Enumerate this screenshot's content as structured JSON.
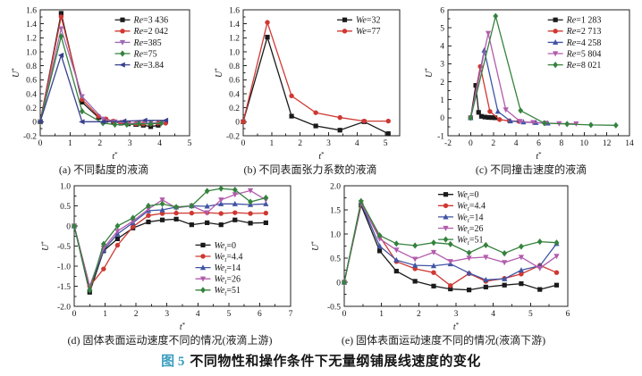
{
  "figure": {
    "label": "图 5",
    "title": "不同物性和操作条件下无量纲铺展线速度的变化",
    "accent_color": "#3a9dbf"
  },
  "chart_data": [
    {
      "id": "a",
      "type": "line",
      "caption": "(a) 不同黏度的液滴",
      "xlabel": "t*",
      "ylabel": "U*",
      "xlim": [
        0,
        5
      ],
      "ylim": [
        -0.2,
        1.6
      ],
      "xticks": {
        "values": [
          0,
          1,
          2,
          3,
          4,
          5
        ],
        "labels": [
          "0",
          "1",
          "2",
          "3",
          "4",
          "5"
        ]
      },
      "yticks": {
        "values": [
          -0.2,
          0,
          0.2,
          0.4,
          0.6,
          0.8,
          1.0,
          1.2,
          1.4,
          1.6
        ],
        "labels": [
          "-0.2",
          "0",
          "0.2",
          "0.4",
          "0.6",
          "0.8",
          "1.0",
          "1.2",
          "1.4",
          "1.6"
        ]
      },
      "legend": {
        "x": 0.5,
        "y": 0.03
      },
      "series": [
        {
          "label": {
            "var": "Re",
            "sub": "",
            "val": "3 436"
          },
          "color": "#1a1a1a",
          "marker": "square",
          "x": [
            0,
            0.7,
            1.4,
            1.95,
            2.2,
            2.45,
            2.7,
            2.95,
            3.2,
            3.45,
            3.7,
            3.95
          ],
          "y": [
            0,
            1.55,
            0.28,
            0.06,
            0.02,
            0,
            -0.02,
            -0.03,
            -0.04,
            -0.05,
            -0.07,
            -0.05
          ]
        },
        {
          "label": {
            "var": "Re",
            "sub": "",
            "val": "2 042"
          },
          "color": "#cf3832",
          "marker": "circle",
          "x": [
            0,
            0.7,
            1.4,
            1.95,
            2.2,
            2.45,
            2.7,
            2.95,
            3.2,
            3.45,
            3.7,
            3.95,
            4.2
          ],
          "y": [
            0,
            1.5,
            0.32,
            0.08,
            0.04,
            0.01,
            -0.01,
            -0.02,
            -0.03,
            -0.03,
            -0.03,
            -0.02,
            -0.02
          ]
        },
        {
          "label": {
            "var": "Re",
            "sub": "",
            "val": "385"
          },
          "color": "#a06ab0",
          "marker": "tri-down",
          "x": [
            0,
            0.7,
            1.4,
            2.1,
            2.5,
            2.9,
            3.3,
            3.7,
            4.1
          ],
          "y": [
            0,
            1.33,
            0.36,
            0.04,
            0,
            -0.02,
            -0.02,
            -0.02,
            -0.01
          ]
        },
        {
          "label": {
            "var": "Re",
            "sub": "",
            "val": "75"
          },
          "color": "#35823e",
          "marker": "diamond",
          "x": [
            0,
            0.7,
            1.4,
            2.1,
            2.5,
            2.9,
            3.3,
            3.7,
            4.05
          ],
          "y": [
            0,
            1.22,
            0.15,
            -0.02,
            -0.04,
            -0.04,
            -0.03,
            -0.03,
            -0.02
          ]
        },
        {
          "label": {
            "var": "Re",
            "sub": "",
            "val": "3.84"
          },
          "color": "#39418e",
          "marker": "tri-left",
          "x": [
            0,
            0.7,
            1.4,
            2.1,
            2.8,
            3.5,
            4.2
          ],
          "y": [
            0,
            0.95,
            0,
            0,
            0.01,
            0.02,
            0.02
          ]
        }
      ]
    },
    {
      "id": "b",
      "type": "line",
      "caption": "(b) 不同表面张力系数的液滴",
      "xlabel": "t*",
      "ylabel": "U*",
      "xlim": [
        0,
        5.5
      ],
      "ylim": [
        -0.2,
        1.6
      ],
      "xticks": {
        "values": [
          0,
          1,
          2,
          3,
          4,
          5
        ],
        "labels": [
          "0",
          "1",
          "2",
          "3",
          "4",
          "5"
        ]
      },
      "yticks": {
        "values": [
          -0.2,
          0,
          0.2,
          0.4,
          0.6,
          0.8,
          1.0,
          1.2,
          1.4,
          1.6
        ],
        "labels": [
          "-0.2",
          "0",
          "0.2",
          "0.4",
          "0.6",
          "0.8",
          "1.0",
          "1.2",
          "1.4",
          "1.6"
        ]
      },
      "legend": {
        "x": 0.6,
        "y": 0.03
      },
      "series": [
        {
          "label": {
            "var": "We",
            "sub": "",
            "val": "32"
          },
          "color": "#1a1a1a",
          "marker": "square",
          "x": [
            0,
            0.85,
            1.7,
            2.55,
            3.4,
            4.25,
            5.1
          ],
          "y": [
            0,
            1.21,
            0.08,
            -0.06,
            -0.12,
            0.0,
            -0.17
          ]
        },
        {
          "label": {
            "var": "We",
            "sub": "",
            "val": "77"
          },
          "color": "#cf3832",
          "marker": "circle",
          "x": [
            0,
            0.85,
            1.7,
            2.55,
            3.4,
            4.25,
            5.1
          ],
          "y": [
            0,
            1.42,
            0.37,
            0.13,
            0.06,
            0.01,
            0.01
          ]
        }
      ]
    },
    {
      "id": "c",
      "type": "line",
      "caption": "(c) 不同撞击速度的液滴",
      "xlabel": "t*",
      "ylabel": "U*",
      "xlim": [
        -2,
        14
      ],
      "ylim": [
        -1,
        6
      ],
      "xticks": {
        "values": [
          -2,
          0,
          2,
          4,
          6,
          8,
          10,
          12,
          14
        ],
        "labels": [
          "-2",
          "0",
          "2",
          "4",
          "6",
          "8",
          "10",
          "12",
          "14"
        ]
      },
      "yticks": {
        "values": [
          -1,
          0,
          1,
          2,
          3,
          4,
          5,
          6
        ],
        "labels": [
          "-1",
          "0",
          "1",
          "2",
          "3",
          "4",
          "5",
          "6"
        ]
      },
      "legend": {
        "x": 0.55,
        "y": 0.03
      },
      "series": [
        {
          "label": {
            "var": "Re",
            "sub": "",
            "val": "1 283"
          },
          "color": "#1a1a1a",
          "marker": "square",
          "x": [
            0,
            0.45,
            0.7,
            0.95,
            1.25,
            1.55,
            1.85,
            2.15
          ],
          "y": [
            0,
            1.8,
            0.3,
            0.08,
            0.04,
            0.02,
            0.01,
            0
          ]
        },
        {
          "label": {
            "var": "Re",
            "sub": "",
            "val": "2 713"
          },
          "color": "#cf3832",
          "marker": "circle",
          "x": [
            0,
            0.85,
            1.7,
            2.55,
            3.4,
            4.25
          ],
          "y": [
            0,
            2.85,
            0.35,
            -0.1,
            -0.17,
            -0.2
          ]
        },
        {
          "label": {
            "var": "Re",
            "sub": "",
            "val": "4 258"
          },
          "color": "#4154a4",
          "marker": "tri-up",
          "x": [
            0,
            1.2,
            2.4,
            3.5,
            4.65,
            5.75,
            6.8
          ],
          "y": [
            0,
            3.75,
            0.35,
            -0.18,
            -0.24,
            -0.27,
            -0.3
          ]
        },
        {
          "label": {
            "var": "Re",
            "sub": "",
            "val": "5 804"
          },
          "color": "#b35cad",
          "marker": "tri-down",
          "x": [
            0,
            1.55,
            3.1,
            4.35,
            5.5,
            6.6,
            7.8,
            9.3
          ],
          "y": [
            0,
            4.7,
            0.45,
            -0.2,
            -0.26,
            -0.3,
            -0.32,
            -0.33
          ]
        },
        {
          "label": {
            "var": "Re",
            "sub": "",
            "val": "8 021"
          },
          "color": "#35823e",
          "marker": "diamond",
          "x": [
            0,
            2.2,
            4.4,
            6.5,
            8.5,
            10.6,
            12.8
          ],
          "y": [
            0,
            5.65,
            0.4,
            -0.3,
            -0.35,
            -0.4,
            -0.42
          ]
        }
      ]
    },
    {
      "id": "d",
      "type": "line",
      "caption": "(d) 固体表面运动速度不同的情况(液滴上游)",
      "xlabel": "t*",
      "ylabel": "U*",
      "xlim": [
        0,
        7
      ],
      "ylim": [
        -2.0,
        1.0
      ],
      "xticks": {
        "values": [
          0,
          1,
          2,
          3,
          4,
          5,
          6,
          7
        ],
        "labels": [
          "0",
          "1",
          "2",
          "3",
          "4",
          "5",
          "6",
          "7"
        ]
      },
      "yticks": {
        "values": [
          -2.0,
          -1.5,
          -1.0,
          -0.5,
          0,
          0.5,
          1.0
        ],
        "labels": [
          "-2.0",
          "-1.5",
          "-1.0",
          "-0.5",
          "0",
          "0.5",
          "1.0"
        ]
      },
      "legend": {
        "x": 0.56,
        "y": 0.44
      },
      "series": [
        {
          "label": {
            "var": "We",
            "sub": "t",
            "val": "0"
          },
          "color": "#1a1a1a",
          "marker": "square",
          "x": [
            0,
            0.5,
            0.95,
            1.4,
            1.9,
            2.4,
            2.85,
            3.3,
            3.8,
            4.3,
            4.75,
            5.2,
            5.7,
            6.2
          ],
          "y": [
            0,
            -1.65,
            -0.62,
            -0.32,
            -0.05,
            0.1,
            0.15,
            0.17,
            0.03,
            0.08,
            0.03,
            0.15,
            0.07,
            0.08
          ]
        },
        {
          "label": {
            "var": "We",
            "sub": "t",
            "val": "4.4"
          },
          "color": "#cf3832",
          "marker": "circle",
          "x": [
            0,
            0.5,
            0.95,
            1.4,
            1.9,
            2.4,
            2.85,
            3.3,
            3.8,
            4.3,
            4.75,
            5.2,
            5.7,
            6.2
          ],
          "y": [
            0,
            -1.5,
            -1.07,
            -0.48,
            -0.02,
            0.26,
            0.31,
            0.32,
            0.32,
            0.33,
            0.31,
            0.33,
            0.31,
            0.32
          ]
        },
        {
          "label": {
            "var": "We",
            "sub": "t",
            "val": "14"
          },
          "color": "#4154a4",
          "marker": "tri-up",
          "x": [
            0,
            0.5,
            0.95,
            1.4,
            1.9,
            2.4,
            2.85,
            3.3,
            3.8,
            4.3,
            4.75,
            5.2,
            5.7,
            6.2
          ],
          "y": [
            0,
            -1.55,
            -0.6,
            -0.2,
            0.08,
            0.38,
            0.4,
            0.47,
            0.5,
            0.49,
            0.55,
            0.55,
            0.53,
            0.55
          ]
        },
        {
          "label": {
            "var": "We",
            "sub": "t",
            "val": "26"
          },
          "color": "#b35cad",
          "marker": "tri-down",
          "x": [
            0,
            0.5,
            0.95,
            1.4,
            1.9,
            2.4,
            2.85,
            3.3,
            3.8,
            4.3,
            4.75,
            5.2,
            5.7,
            6.2
          ],
          "y": [
            0,
            -1.5,
            -0.55,
            -0.13,
            0.12,
            0.42,
            0.65,
            0.45,
            0.5,
            0.33,
            0.65,
            0.78,
            0.88,
            0.65
          ]
        },
        {
          "label": {
            "var": "We",
            "sub": "t",
            "val": "51"
          },
          "color": "#35823e",
          "marker": "diamond",
          "x": [
            0,
            0.5,
            0.95,
            1.4,
            1.9,
            2.4,
            2.85,
            3.3,
            3.8,
            4.3,
            4.75,
            5.2,
            5.7,
            6.2
          ],
          "y": [
            0,
            -1.6,
            -0.45,
            0.0,
            0.2,
            0.5,
            0.55,
            0.47,
            0.5,
            0.87,
            0.93,
            0.9,
            0.6,
            0.7
          ]
        }
      ]
    },
    {
      "id": "e",
      "type": "line",
      "caption": "(e) 固体表面运动速度不同的情况(液滴下游)",
      "xlabel": "t*",
      "ylabel": "U*",
      "xlim": [
        0,
        6
      ],
      "ylim": [
        -0.5,
        2.0
      ],
      "xticks": {
        "values": [
          0,
          1,
          2,
          3,
          4,
          5,
          6
        ],
        "labels": [
          "0",
          "1",
          "2",
          "3",
          "4",
          "5",
          "6"
        ]
      },
      "yticks": {
        "values": [
          -0.5,
          0,
          0.5,
          1.0,
          1.5,
          2.0
        ],
        "labels": [
          "-0.5",
          "0",
          "0.5",
          "1.0",
          "1.5",
          "2.0"
        ]
      },
      "legend": {
        "x": 0.42,
        "y": 0.02
      },
      "series": [
        {
          "label": {
            "var": "We",
            "sub": "t",
            "val": "0"
          },
          "color": "#1a1a1a",
          "marker": "square",
          "x": [
            0,
            0.45,
            0.95,
            1.4,
            1.9,
            2.4,
            2.85,
            3.35,
            3.8,
            4.3,
            4.75,
            5.25,
            5.7
          ],
          "y": [
            0,
            1.6,
            0.65,
            0.23,
            0.02,
            -0.08,
            -0.14,
            -0.16,
            -0.1,
            -0.06,
            -0.03,
            -0.15,
            -0.06
          ]
        },
        {
          "label": {
            "var": "We",
            "sub": "t",
            "val": "4.4"
          },
          "color": "#cf3832",
          "marker": "circle",
          "x": [
            0,
            0.45,
            0.95,
            1.4,
            1.9,
            2.4,
            2.85,
            3.35,
            3.8,
            4.3,
            4.75,
            5.25,
            5.7
          ],
          "y": [
            0,
            1.62,
            0.95,
            0.43,
            0.28,
            0.2,
            -0.07,
            0.18,
            0.02,
            0.08,
            0.17,
            0.35,
            0.2
          ]
        },
        {
          "label": {
            "var": "We",
            "sub": "t",
            "val": "14"
          },
          "color": "#4154a4",
          "marker": "tri-up",
          "x": [
            0,
            0.45,
            0.95,
            1.4,
            1.9,
            2.4,
            2.85,
            3.35,
            3.8,
            4.3,
            4.75,
            5.25,
            5.7
          ],
          "y": [
            0,
            1.65,
            0.75,
            0.46,
            0.35,
            0.34,
            0.38,
            0.19,
            0.05,
            0.07,
            0.25,
            0.34,
            0.8
          ]
        },
        {
          "label": {
            "var": "We",
            "sub": "t",
            "val": "26"
          },
          "color": "#b35cad",
          "marker": "tri-down",
          "x": [
            0,
            0.45,
            0.95,
            1.4,
            1.9,
            2.4,
            2.85,
            3.35,
            3.8,
            4.3,
            4.75,
            5.25,
            5.7
          ],
          "y": [
            0,
            1.65,
            0.9,
            0.67,
            0.48,
            0.62,
            0.43,
            0.5,
            0.52,
            0.41,
            0.52,
            0.29,
            0.54
          ]
        },
        {
          "label": {
            "var": "We",
            "sub": "t",
            "val": "51"
          },
          "color": "#35823e",
          "marker": "diamond",
          "x": [
            0,
            0.45,
            0.95,
            1.4,
            1.9,
            2.4,
            2.85,
            3.35,
            3.8,
            4.3,
            4.75,
            5.25,
            5.7
          ],
          "y": [
            0,
            1.68,
            0.97,
            0.8,
            0.76,
            0.82,
            0.79,
            0.61,
            0.77,
            0.6,
            0.74,
            0.84,
            0.82
          ]
        }
      ]
    }
  ]
}
